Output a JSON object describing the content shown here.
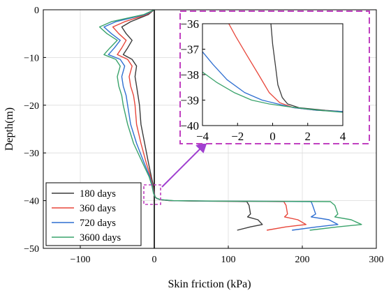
{
  "chart_data": [
    {
      "type": "line",
      "xlabel": "Skin friction (kPa)",
      "ylabel": "Depth(m)",
      "xlim": [
        -150,
        300
      ],
      "ylim": [
        -50,
        0
      ],
      "xticks": [
        -100,
        0,
        100,
        200,
        300
      ],
      "yticks": [
        0,
        -10,
        -20,
        -30,
        -40,
        -50
      ],
      "grid": true,
      "legend_position": "bottom-left",
      "zero_line": "x = 0",
      "series": [
        {
          "name": "180 days",
          "color": "#3a3a3a",
          "points": [
            [
              0,
              0
            ],
            [
              -8,
              -1
            ],
            [
              -32,
              -2.5
            ],
            [
              -44,
              -3.6
            ],
            [
              -38,
              -5
            ],
            [
              -30,
              -6.4
            ],
            [
              -36,
              -8
            ],
            [
              -42,
              -9.4
            ],
            [
              -30,
              -10.4
            ],
            [
              -24,
              -11.8
            ],
            [
              -26,
              -14
            ],
            [
              -24,
              -16
            ],
            [
              -22,
              -18
            ],
            [
              -20,
              -20
            ],
            [
              -18,
              -24
            ],
            [
              -13,
              -28
            ],
            [
              -8,
              -32
            ],
            [
              -4,
              -35
            ],
            [
              -1,
              -37
            ],
            [
              0,
              -38.5
            ],
            [
              1,
              -39.2
            ],
            [
              3,
              -39.5
            ],
            [
              8,
              -39.8
            ],
            [
              20,
              -40
            ],
            [
              60,
              -40.1
            ],
            [
              100,
              -40.15
            ],
            [
              125,
              -40.2
            ],
            [
              128,
              -41
            ],
            [
              130,
              -42.8
            ],
            [
              126,
              -43.4
            ],
            [
              140,
              -44
            ],
            [
              146,
              -45
            ],
            [
              130,
              -45.5
            ],
            [
              112,
              -46.2
            ]
          ]
        },
        {
          "name": "360 days",
          "color": "#e8463a",
          "points": [
            [
              0,
              0
            ],
            [
              -10,
              -1
            ],
            [
              -40,
              -2.5
            ],
            [
              -56,
              -3.6
            ],
            [
              -48,
              -5
            ],
            [
              -38,
              -6.4
            ],
            [
              -44,
              -8
            ],
            [
              -50,
              -9.4
            ],
            [
              -36,
              -10.4
            ],
            [
              -30,
              -11.8
            ],
            [
              -34,
              -14
            ],
            [
              -32,
              -16
            ],
            [
              -28,
              -18
            ],
            [
              -26,
              -20
            ],
            [
              -24,
              -24
            ],
            [
              -18,
              -28
            ],
            [
              -11,
              -32
            ],
            [
              -5,
              -35
            ],
            [
              -2,
              -37
            ],
            [
              -0.5,
              -38.5
            ],
            [
              1,
              -39.2
            ],
            [
              3,
              -39.5
            ],
            [
              8,
              -39.8
            ],
            [
              22,
              -40
            ],
            [
              70,
              -40.1
            ],
            [
              130,
              -40.15
            ],
            [
              175,
              -40.2
            ],
            [
              178,
              -41
            ],
            [
              180,
              -42.8
            ],
            [
              176,
              -43.4
            ],
            [
              194,
              -44
            ],
            [
              205,
              -45
            ],
            [
              178,
              -45.5
            ],
            [
              152,
              -46.2
            ]
          ]
        },
        {
          "name": "720 days",
          "color": "#2f6fd1",
          "points": [
            [
              0,
              0
            ],
            [
              -12,
              -1
            ],
            [
              -52,
              -2.5
            ],
            [
              -68,
              -3.6
            ],
            [
              -58,
              -5
            ],
            [
              -46,
              -6.4
            ],
            [
              -54,
              -8
            ],
            [
              -62,
              -9.4
            ],
            [
              -46,
              -10.4
            ],
            [
              -40,
              -11.8
            ],
            [
              -44,
              -14
            ],
            [
              -42,
              -16
            ],
            [
              -38,
              -18
            ],
            [
              -36,
              -20
            ],
            [
              -32,
              -24
            ],
            [
              -24,
              -28
            ],
            [
              -14,
              -32
            ],
            [
              -6,
              -35
            ],
            [
              -2.5,
              -37
            ],
            [
              -0.8,
              -38.5
            ],
            [
              1,
              -39.2
            ],
            [
              3,
              -39.5
            ],
            [
              8,
              -39.8
            ],
            [
              24,
              -40
            ],
            [
              80,
              -40.1
            ],
            [
              150,
              -40.15
            ],
            [
              212,
              -40.2
            ],
            [
              214,
              -41
            ],
            [
              218,
              -42.8
            ],
            [
              212,
              -43.4
            ],
            [
              236,
              -44
            ],
            [
              248,
              -45
            ],
            [
              220,
              -45.5
            ],
            [
              186,
              -46.2
            ]
          ]
        },
        {
          "name": "3600 days",
          "color": "#3aa36b",
          "points": [
            [
              0,
              0
            ],
            [
              -14,
              -1
            ],
            [
              -58,
              -2.5
            ],
            [
              -74,
              -3.6
            ],
            [
              -64,
              -5
            ],
            [
              -50,
              -6.4
            ],
            [
              -60,
              -8
            ],
            [
              -68,
              -9.4
            ],
            [
              -52,
              -10.4
            ],
            [
              -46,
              -11.8
            ],
            [
              -50,
              -14
            ],
            [
              -48,
              -16
            ],
            [
              -44,
              -18
            ],
            [
              -42,
              -20
            ],
            [
              -36,
              -24
            ],
            [
              -28,
              -28
            ],
            [
              -16,
              -32
            ],
            [
              -7,
              -35
            ],
            [
              -3,
              -37
            ],
            [
              -1,
              -38.5
            ],
            [
              1,
              -39.2
            ],
            [
              3,
              -39.5
            ],
            [
              8,
              -39.8
            ],
            [
              26,
              -40
            ],
            [
              90,
              -40.1
            ],
            [
              170,
              -40.15
            ],
            [
              238,
              -40.2
            ],
            [
              244,
              -41
            ],
            [
              248,
              -42.8
            ],
            [
              244,
              -43.4
            ],
            [
              266,
              -44
            ],
            [
              280,
              -45
            ],
            [
              248,
              -45.5
            ],
            [
              210,
              -46.2
            ]
          ]
        }
      ]
    },
    {
      "type": "line",
      "role": "inset (zoom of -4 to 4 kPa, -40 to -36 m)",
      "xlim": [
        -4,
        4
      ],
      "ylim": [
        -40,
        -36
      ],
      "xticks": [
        -4,
        -2,
        0,
        2,
        4
      ],
      "yticks": [
        -36,
        -37,
        -38,
        -39,
        -40
      ],
      "grid": false,
      "series": [
        {
          "name": "180 days",
          "color": "#3a3a3a",
          "points": [
            [
              -0.1,
              -36
            ],
            [
              0,
              -36.8
            ],
            [
              0.15,
              -37.6
            ],
            [
              0.3,
              -38.4
            ],
            [
              0.55,
              -38.9
            ],
            [
              0.85,
              -39.15
            ],
            [
              1.5,
              -39.3
            ],
            [
              3,
              -39.4
            ],
            [
              4,
              -39.45
            ]
          ]
        },
        {
          "name": "360 days",
          "color": "#e8463a",
          "points": [
            [
              -2.5,
              -36
            ],
            [
              -2.1,
              -36.5
            ],
            [
              -1.5,
              -37.2
            ],
            [
              -0.8,
              -38.0
            ],
            [
              -0.2,
              -38.7
            ],
            [
              0.4,
              -39.1
            ],
            [
              1.2,
              -39.3
            ],
            [
              2.5,
              -39.4
            ],
            [
              4,
              -39.45
            ]
          ]
        },
        {
          "name": "720 days",
          "color": "#2f6fd1",
          "points": [
            [
              -4,
              -37.1
            ],
            [
              -3.4,
              -37.6
            ],
            [
              -2.6,
              -38.2
            ],
            [
              -1.6,
              -38.7
            ],
            [
              -0.6,
              -39.0
            ],
            [
              0.3,
              -39.15
            ],
            [
              1.2,
              -39.3
            ],
            [
              2.5,
              -39.4
            ],
            [
              4,
              -39.45
            ]
          ]
        },
        {
          "name": "3600 days",
          "color": "#3aa36b",
          "points": [
            [
              -4,
              -37.9
            ],
            [
              -3.2,
              -38.3
            ],
            [
              -2.2,
              -38.7
            ],
            [
              -1.2,
              -39.0
            ],
            [
              -0.2,
              -39.15
            ],
            [
              0.8,
              -39.25
            ],
            [
              2,
              -39.35
            ],
            [
              3,
              -39.42
            ],
            [
              4,
              -39.48
            ]
          ]
        }
      ]
    }
  ],
  "highlight_color": "#c040c0",
  "arrow_color": "#a040d0"
}
